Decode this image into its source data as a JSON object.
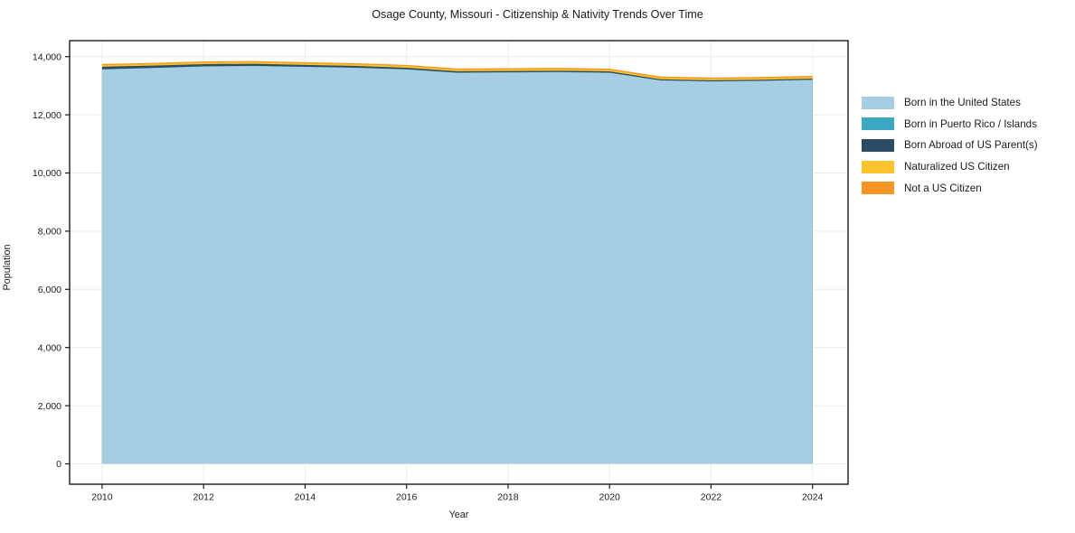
{
  "chart_data": {
    "type": "area",
    "stacked": true,
    "title": "Osage County, Missouri - Citizenship & Nativity Trends Over Time",
    "xlabel": "Year",
    "ylabel": "Population",
    "x": [
      2010,
      2011,
      2012,
      2013,
      2014,
      2015,
      2016,
      2017,
      2018,
      2019,
      2020,
      2021,
      2022,
      2023,
      2024
    ],
    "series": [
      {
        "name": "Born in the United States",
        "color": "#a5cee3",
        "values": [
          13560,
          13605,
          13660,
          13675,
          13645,
          13615,
          13560,
          13445,
          13455,
          13465,
          13445,
          13180,
          13145,
          13165,
          13200
        ]
      },
      {
        "name": "Born in Puerto Rico / Islands",
        "color": "#3ba7c1",
        "values": [
          8,
          8,
          8,
          8,
          8,
          8,
          8,
          8,
          8,
          8,
          8,
          8,
          8,
          8,
          8
        ]
      },
      {
        "name": "Born Abroad of US Parent(s)",
        "color": "#2b4d63",
        "values": [
          85,
          80,
          75,
          70,
          62,
          57,
          52,
          46,
          44,
          42,
          40,
          36,
          34,
          34,
          34
        ]
      },
      {
        "name": "Naturalized US Citizen",
        "color": "#fcc32d",
        "values": [
          52,
          52,
          55,
          56,
          55,
          55,
          55,
          50,
          52,
          54,
          50,
          50,
          50,
          52,
          55
        ]
      },
      {
        "name": "Not a US Citizen",
        "color": "#f89522",
        "values": [
          45,
          42,
          38,
          40,
          40,
          40,
          40,
          45,
          45,
          45,
          45,
          45,
          45,
          45,
          45
        ]
      }
    ],
    "x_range": [
      2009.36,
      2024.7
    ],
    "y_range": [
      -700,
      14550
    ],
    "x_ticks": [
      {
        "v": 2010,
        "label": "2010"
      },
      {
        "v": 2012,
        "label": "2012"
      },
      {
        "v": 2014,
        "label": "2014"
      },
      {
        "v": 2016,
        "label": "2016"
      },
      {
        "v": 2018,
        "label": "2018"
      },
      {
        "v": 2020,
        "label": "2020"
      },
      {
        "v": 2022,
        "label": "2022"
      },
      {
        "v": 2024,
        "label": "2024"
      }
    ],
    "y_ticks": [
      {
        "v": 0,
        "label": "0"
      },
      {
        "v": 2000,
        "label": "2,000"
      },
      {
        "v": 4000,
        "label": "4,000"
      },
      {
        "v": 6000,
        "label": "6,000"
      },
      {
        "v": 8000,
        "label": "8,000"
      },
      {
        "v": 10000,
        "label": "10,000"
      },
      {
        "v": 12000,
        "label": "12,000"
      },
      {
        "v": 14000,
        "label": "14,000"
      }
    ],
    "grid": true,
    "legend_position": "right",
    "colors": {
      "grid": "#ebebeb",
      "frame": "#1a1a1a",
      "tick": "#1a1a1a",
      "text": "#1a1a1a",
      "background": "#ffffff"
    }
  }
}
